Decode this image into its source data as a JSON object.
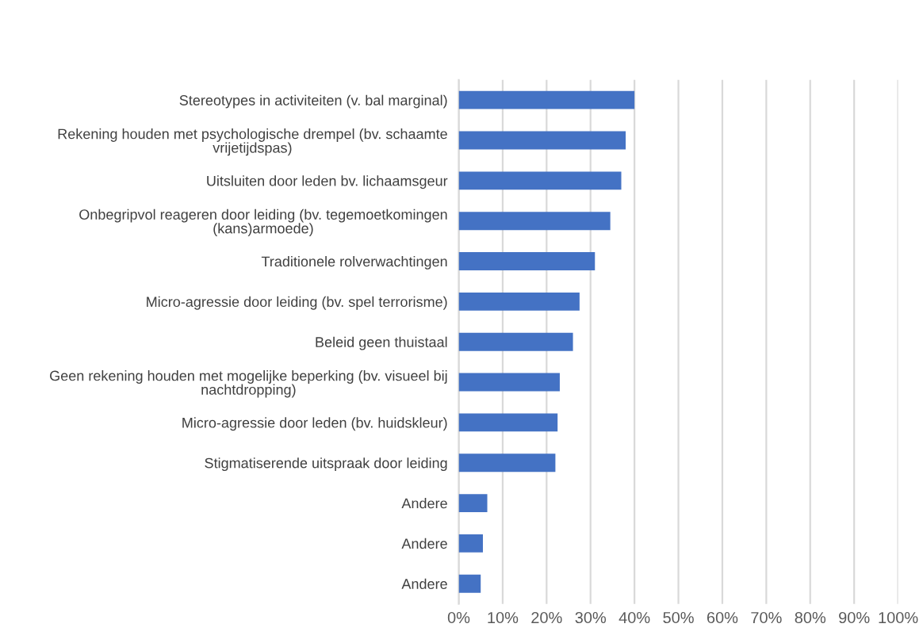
{
  "chart_data": {
    "type": "bar",
    "orientation": "horizontal",
    "categories": [
      "Stereotypes in activiteiten (v. bal marginal)",
      "Rekening houden met psychologische drempel (bv. schaamte\nvrijetijdspas)",
      "Uitsluiten door leden bv. lichaamsgeur",
      "Onbegripvol reageren door leiding (bv. tegemoetkomingen\n(kans)armoede)",
      "Traditionele rolverwachtingen",
      "Micro-agressie door leiding (bv. spel terrorisme)",
      "Beleid geen thuistaal",
      "Geen rekening houden met mogelijke beperking (bv. visueel bij\nnachtdropping)",
      "Micro-agressie door leden (bv. huidskleur)",
      "Stigmatiserende uitspraak door leiding",
      "Andere",
      "Andere",
      "Andere"
    ],
    "values": [
      40,
      38,
      37,
      34.5,
      31,
      27.5,
      26,
      23,
      22.5,
      22,
      6.5,
      5.5,
      5
    ],
    "color": "#4472c4",
    "xlim": [
      0,
      100
    ],
    "xticks": [
      {
        "value": 0,
        "label": "0%"
      },
      {
        "value": 10,
        "label": "10%"
      },
      {
        "value": 20,
        "label": "20%"
      },
      {
        "value": 30,
        "label": "30%"
      },
      {
        "value": 40,
        "label": "40%"
      },
      {
        "value": 50,
        "label": "50%"
      },
      {
        "value": 60,
        "label": "60%"
      },
      {
        "value": 70,
        "label": "70%"
      },
      {
        "value": 80,
        "label": "80%"
      },
      {
        "value": 90,
        "label": "90%"
      },
      {
        "value": 100,
        "label": "100%"
      }
    ],
    "grid": "x"
  }
}
